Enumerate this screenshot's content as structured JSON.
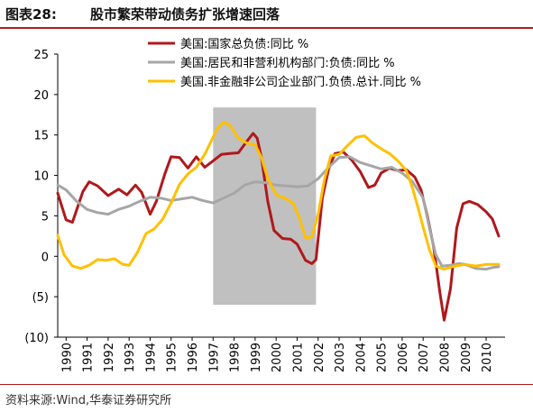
{
  "header": {
    "figure_label": "图表28:",
    "title": "股市繁荣带动债务扩张增速回落"
  },
  "footer": {
    "source": "资料来源:Wind,华泰证券研究所"
  },
  "chart_data": {
    "type": "line",
    "x_categories": [
      "1990",
      "1991",
      "1992",
      "1993",
      "1994",
      "1995",
      "1996",
      "1997",
      "1998",
      "1999",
      "2000",
      "2001",
      "2002",
      "2003",
      "2004",
      "2005",
      "2006",
      "2007",
      "2008",
      "2009",
      "2010"
    ],
    "xlim": [
      1989.6,
      2010.9
    ],
    "ylim": [
      -10,
      25
    ],
    "yticks": [
      25,
      20,
      15,
      10,
      5,
      0,
      -5,
      -10
    ],
    "ytick_labels": [
      "25",
      "20",
      "15",
      "10",
      "5",
      "0",
      "(5)",
      "(10)"
    ],
    "shaded_region": {
      "x_start": 1997.0,
      "x_end": 2001.9,
      "color": "#c0c0c0"
    },
    "legend_position": "top",
    "series": [
      {
        "name": "美国:国家总负债:同比 %",
        "color": "#b0181c",
        "points": [
          [
            1989.6,
            7.8
          ],
          [
            1990.0,
            4.5
          ],
          [
            1990.3,
            4.2
          ],
          [
            1990.8,
            8.0
          ],
          [
            1991.1,
            9.2
          ],
          [
            1991.5,
            8.7
          ],
          [
            1992.0,
            7.5
          ],
          [
            1992.5,
            8.3
          ],
          [
            1992.9,
            7.6
          ],
          [
            1993.3,
            8.8
          ],
          [
            1993.6,
            7.9
          ],
          [
            1994.0,
            5.2
          ],
          [
            1994.3,
            6.8
          ],
          [
            1994.7,
            10.2
          ],
          [
            1995.0,
            12.3
          ],
          [
            1995.4,
            12.2
          ],
          [
            1995.8,
            10.9
          ],
          [
            1996.2,
            12.3
          ],
          [
            1996.6,
            11.0
          ],
          [
            1997.0,
            11.8
          ],
          [
            1997.4,
            12.6
          ],
          [
            1997.8,
            12.7
          ],
          [
            1998.2,
            12.8
          ],
          [
            1998.6,
            14.2
          ],
          [
            1998.9,
            15.2
          ],
          [
            1999.1,
            14.6
          ],
          [
            1999.3,
            12.2
          ],
          [
            1999.6,
            6.8
          ],
          [
            1999.9,
            3.2
          ],
          [
            2000.3,
            2.2
          ],
          [
            2000.7,
            2.1
          ],
          [
            2001.0,
            1.5
          ],
          [
            2001.4,
            -0.5
          ],
          [
            2001.7,
            -0.9
          ],
          [
            2001.9,
            -0.4
          ],
          [
            2002.2,
            7.2
          ],
          [
            2002.5,
            10.8
          ],
          [
            2002.8,
            12.7
          ],
          [
            2003.2,
            12.9
          ],
          [
            2003.6,
            11.9
          ],
          [
            2004.0,
            10.5
          ],
          [
            2004.4,
            8.5
          ],
          [
            2004.7,
            8.8
          ],
          [
            2005.0,
            10.3
          ],
          [
            2005.4,
            10.9
          ],
          [
            2005.8,
            10.6
          ],
          [
            2006.2,
            10.7
          ],
          [
            2006.6,
            9.8
          ],
          [
            2006.9,
            8.2
          ],
          [
            2007.2,
            5.0
          ],
          [
            2007.5,
            1.2
          ],
          [
            2007.8,
            -4.5
          ],
          [
            2008.0,
            -7.9
          ],
          [
            2008.3,
            -4.0
          ],
          [
            2008.6,
            3.5
          ],
          [
            2008.9,
            6.5
          ],
          [
            2009.2,
            6.8
          ],
          [
            2009.6,
            6.4
          ],
          [
            2010.0,
            5.5
          ],
          [
            2010.3,
            4.6
          ],
          [
            2010.6,
            2.5
          ]
        ]
      },
      {
        "name": "美国:居民和非营利机构部门:负债:同比 %",
        "color": "#a6a6a6",
        "points": [
          [
            1989.6,
            8.8
          ],
          [
            1990.0,
            8.2
          ],
          [
            1990.5,
            6.8
          ],
          [
            1991.0,
            5.8
          ],
          [
            1991.5,
            5.4
          ],
          [
            1992.0,
            5.2
          ],
          [
            1992.5,
            5.8
          ],
          [
            1993.0,
            6.2
          ],
          [
            1993.5,
            6.8
          ],
          [
            1994.0,
            7.3
          ],
          [
            1994.5,
            7.2
          ],
          [
            1995.0,
            6.9
          ],
          [
            1995.5,
            7.1
          ],
          [
            1996.0,
            7.3
          ],
          [
            1996.5,
            6.9
          ],
          [
            1997.0,
            6.6
          ],
          [
            1997.5,
            7.2
          ],
          [
            1998.0,
            7.8
          ],
          [
            1998.5,
            8.8
          ],
          [
            1999.0,
            9.2
          ],
          [
            1999.5,
            9.1
          ],
          [
            2000.0,
            8.8
          ],
          [
            2000.5,
            8.7
          ],
          [
            2001.0,
            8.6
          ],
          [
            2001.5,
            8.7
          ],
          [
            2002.0,
            9.6
          ],
          [
            2002.5,
            11.0
          ],
          [
            2003.0,
            12.2
          ],
          [
            2003.5,
            12.3
          ],
          [
            2004.0,
            11.6
          ],
          [
            2004.5,
            11.2
          ],
          [
            2005.0,
            10.8
          ],
          [
            2005.5,
            11.0
          ],
          [
            2006.0,
            10.3
          ],
          [
            2006.5,
            9.2
          ],
          [
            2007.0,
            7.2
          ],
          [
            2007.3,
            3.5
          ],
          [
            2007.6,
            0.2
          ],
          [
            2007.9,
            -1.2
          ],
          [
            2008.3,
            -1.1
          ],
          [
            2008.7,
            -0.9
          ],
          [
            2009.0,
            -1.0
          ],
          [
            2009.5,
            -1.5
          ],
          [
            2010.0,
            -1.6
          ],
          [
            2010.3,
            -1.4
          ],
          [
            2010.6,
            -1.3
          ]
        ]
      },
      {
        "name": "美国.非金融非公司企业部门.负债.总计.同比 %",
        "color": "#ffc000",
        "points": [
          [
            1989.6,
            2.6
          ],
          [
            1989.9,
            0.2
          ],
          [
            1990.3,
            -1.2
          ],
          [
            1990.7,
            -1.5
          ],
          [
            1991.1,
            -1.1
          ],
          [
            1991.5,
            -0.4
          ],
          [
            1991.9,
            -0.5
          ],
          [
            1992.3,
            -0.3
          ],
          [
            1992.7,
            -1.0
          ],
          [
            1993.0,
            -1.1
          ],
          [
            1993.4,
            0.5
          ],
          [
            1993.8,
            2.8
          ],
          [
            1994.2,
            3.4
          ],
          [
            1994.6,
            4.6
          ],
          [
            1995.0,
            6.6
          ],
          [
            1995.4,
            8.9
          ],
          [
            1995.8,
            10.2
          ],
          [
            1996.2,
            11.0
          ],
          [
            1996.6,
            12.6
          ],
          [
            1996.9,
            14.2
          ],
          [
            1997.2,
            15.8
          ],
          [
            1997.5,
            16.6
          ],
          [
            1997.8,
            16.2
          ],
          [
            1998.2,
            14.6
          ],
          [
            1998.6,
            14.0
          ],
          [
            1999.0,
            13.8
          ],
          [
            1999.3,
            12.2
          ],
          [
            1999.6,
            9.6
          ],
          [
            2000.0,
            7.6
          ],
          [
            2000.4,
            7.2
          ],
          [
            2000.8,
            6.6
          ],
          [
            2001.1,
            4.8
          ],
          [
            2001.4,
            2.3
          ],
          [
            2001.7,
            2.4
          ],
          [
            2002.0,
            5.2
          ],
          [
            2002.3,
            9.5
          ],
          [
            2002.6,
            12.4
          ],
          [
            2003.0,
            12.6
          ],
          [
            2003.4,
            13.7
          ],
          [
            2003.8,
            14.7
          ],
          [
            2004.2,
            14.9
          ],
          [
            2004.6,
            14.0
          ],
          [
            2005.0,
            13.3
          ],
          [
            2005.4,
            12.7
          ],
          [
            2005.8,
            11.8
          ],
          [
            2006.2,
            10.6
          ],
          [
            2006.5,
            8.4
          ],
          [
            2006.8,
            5.6
          ],
          [
            2007.0,
            3.6
          ],
          [
            2007.3,
            0.8
          ],
          [
            2007.6,
            -1.2
          ],
          [
            2008.0,
            -1.6
          ],
          [
            2008.5,
            -1.2
          ],
          [
            2009.0,
            -1.0
          ],
          [
            2009.5,
            -1.2
          ],
          [
            2010.0,
            -1.0
          ],
          [
            2010.6,
            -1.0
          ]
        ]
      }
    ]
  }
}
